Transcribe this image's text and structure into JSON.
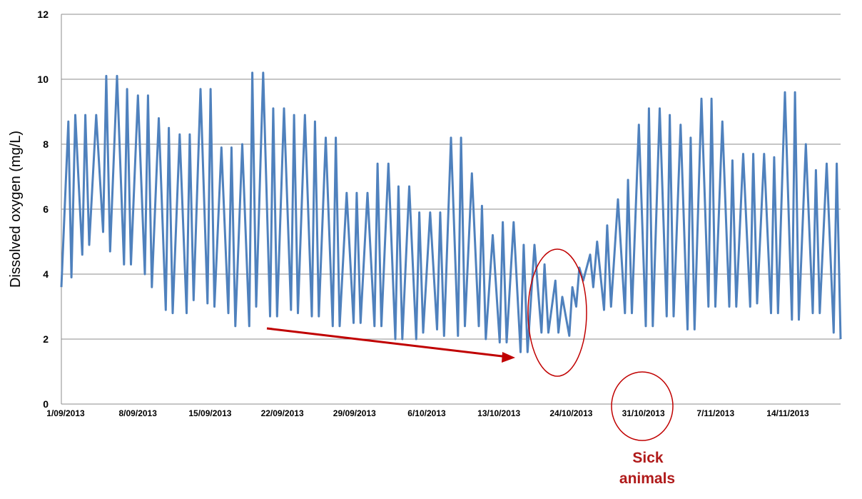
{
  "chart_data": {
    "type": "line",
    "title": "",
    "xlabel": "",
    "ylabel": "Dissolved oxygen  (mg/L)",
    "ylim": [
      0,
      12
    ],
    "yticks": [
      0,
      2,
      4,
      6,
      8,
      10,
      12
    ],
    "grid": "horizontal",
    "legend": "none",
    "x_tick_labels": [
      "1/09/2013",
      "8/09/2013",
      "15/09/2013",
      "22/09/2013",
      "29/09/2013",
      "6/10/2013",
      "13/10/2013",
      "24/10/2013",
      "31/10/2013",
      "7/11/2013",
      "14/11/2013"
    ],
    "series": [
      {
        "color": "#4f81bd",
        "points": [
          [
            "2013-09-01",
            3.6
          ],
          [
            "2013-09-02",
            8.7
          ],
          [
            "2013-09-02",
            3.9
          ],
          [
            "2013-09-03",
            8.9
          ],
          [
            "2013-09-04",
            4.6
          ],
          [
            "2013-09-04",
            8.9
          ],
          [
            "2013-09-05",
            4.9
          ],
          [
            "2013-09-06",
            8.9
          ],
          [
            "2013-09-07",
            5.3
          ],
          [
            "2013-09-07",
            10.1
          ],
          [
            "2013-09-08",
            4.7
          ],
          [
            "2013-09-09",
            10.1
          ],
          [
            "2013-09-10",
            4.3
          ],
          [
            "2013-09-10",
            9.7
          ],
          [
            "2013-09-11",
            4.3
          ],
          [
            "2013-09-12",
            9.5
          ],
          [
            "2013-09-13",
            4.0
          ],
          [
            "2013-09-13",
            9.5
          ],
          [
            "2013-09-14",
            3.6
          ],
          [
            "2013-09-15",
            8.8
          ],
          [
            "2013-09-16",
            2.9
          ],
          [
            "2013-09-16",
            8.5
          ],
          [
            "2013-09-17",
            2.8
          ],
          [
            "2013-09-18",
            8.3
          ],
          [
            "2013-09-19",
            2.8
          ],
          [
            "2013-09-19",
            8.3
          ],
          [
            "2013-09-20",
            3.2
          ],
          [
            "2013-09-21",
            9.7
          ],
          [
            "2013-09-22",
            3.1
          ],
          [
            "2013-09-22",
            9.7
          ],
          [
            "2013-09-23",
            3.0
          ],
          [
            "2013-09-24",
            7.9
          ],
          [
            "2013-09-25",
            2.8
          ],
          [
            "2013-09-25",
            7.9
          ],
          [
            "2013-09-26",
            2.4
          ],
          [
            "2013-09-27",
            8.0
          ],
          [
            "2013-09-28",
            2.4
          ],
          [
            "2013-09-28",
            10.2
          ],
          [
            "2013-09-29",
            3.0
          ],
          [
            "2013-09-30",
            10.2
          ],
          [
            "2013-10-01",
            2.7
          ],
          [
            "2013-10-01",
            9.1
          ],
          [
            "2013-10-02",
            2.7
          ],
          [
            "2013-10-03",
            9.1
          ],
          [
            "2013-10-04",
            2.9
          ],
          [
            "2013-10-04",
            8.9
          ],
          [
            "2013-10-05",
            2.8
          ],
          [
            "2013-10-06",
            8.9
          ],
          [
            "2013-10-07",
            2.7
          ],
          [
            "2013-10-07",
            8.7
          ],
          [
            "2013-10-08",
            2.7
          ],
          [
            "2013-10-09",
            8.2
          ],
          [
            "2013-10-10",
            2.4
          ],
          [
            "2013-10-10",
            8.2
          ],
          [
            "2013-10-11",
            2.4
          ],
          [
            "2013-10-12",
            6.5
          ],
          [
            "2013-10-13",
            2.5
          ],
          [
            "2013-10-13",
            6.5
          ],
          [
            "2013-10-14",
            2.5
          ],
          [
            "2013-10-15",
            6.5
          ],
          [
            "2013-10-16",
            2.4
          ],
          [
            "2013-10-16",
            7.4
          ],
          [
            "2013-10-17",
            2.4
          ],
          [
            "2013-10-18",
            7.4
          ],
          [
            "2013-10-19",
            2.0
          ],
          [
            "2013-10-19",
            6.7
          ],
          [
            "2013-10-20",
            2.0
          ],
          [
            "2013-10-21",
            6.7
          ],
          [
            "2013-10-22",
            2.0
          ],
          [
            "2013-10-22",
            5.9
          ],
          [
            "2013-10-23",
            2.2
          ],
          [
            "2013-10-24",
            5.9
          ],
          [
            "2013-10-25",
            2.3
          ],
          [
            "2013-10-25",
            5.9
          ],
          [
            "2013-10-26",
            2.1
          ],
          [
            "2013-10-27",
            8.2
          ],
          [
            "2013-10-28",
            2.1
          ],
          [
            "2013-10-28",
            8.2
          ],
          [
            "2013-10-29",
            2.4
          ],
          [
            "2013-10-30",
            7.1
          ],
          [
            "2013-10-31",
            2.4
          ],
          [
            "2013-10-31",
            6.1
          ],
          [
            "2013-11-01",
            2.0
          ],
          [
            "2013-11-02",
            5.2
          ],
          [
            "2013-11-03",
            1.9
          ],
          [
            "2013-11-03",
            5.6
          ],
          [
            "2013-11-04",
            1.9
          ],
          [
            "2013-11-05",
            5.6
          ],
          [
            "2013-11-06",
            1.6
          ],
          [
            "2013-11-06",
            4.9
          ],
          [
            "2013-11-07",
            1.6
          ],
          [
            "2013-11-08",
            4.9
          ],
          [
            "2013-11-09",
            2.2
          ],
          [
            "2013-11-09",
            4.3
          ],
          [
            "2013-11-10",
            2.2
          ],
          [
            "2013-11-11",
            3.8
          ],
          [
            "2013-11-11",
            2.2
          ],
          [
            "2013-11-12",
            3.3
          ],
          [
            "2013-11-13",
            2.1
          ],
          [
            "2013-11-13",
            3.6
          ],
          [
            "2013-11-14",
            3.0
          ],
          [
            "2013-11-14",
            4.2
          ],
          [
            "2013-11-15",
            3.8
          ],
          [
            "2013-11-16",
            4.6
          ],
          [
            "2013-11-16",
            3.6
          ],
          [
            "2013-11-17",
            5.0
          ],
          [
            "2013-11-18",
            2.9
          ],
          [
            "2013-11-18",
            5.5
          ],
          [
            "2013-11-19",
            3.0
          ],
          [
            "2013-11-20",
            6.3
          ],
          [
            "2013-11-21",
            2.8
          ],
          [
            "2013-11-21",
            6.9
          ],
          [
            "2013-11-22",
            2.8
          ],
          [
            "2013-11-23",
            8.6
          ],
          [
            "2013-11-24",
            2.4
          ],
          [
            "2013-11-24",
            9.1
          ],
          [
            "2013-11-25",
            2.4
          ],
          [
            "2013-11-26",
            9.1
          ],
          [
            "2013-11-27",
            2.7
          ],
          [
            "2013-11-27",
            8.9
          ],
          [
            "2013-11-28",
            2.7
          ],
          [
            "2013-11-29",
            8.6
          ],
          [
            "2013-11-30",
            2.3
          ],
          [
            "2013-11-30",
            8.2
          ],
          [
            "2013-12-01",
            2.3
          ],
          [
            "2013-12-02",
            9.4
          ],
          [
            "2013-12-03",
            3.0
          ],
          [
            "2013-12-03",
            9.4
          ],
          [
            "2013-12-04",
            3.0
          ],
          [
            "2013-12-05",
            8.7
          ],
          [
            "2013-12-06",
            3.0
          ],
          [
            "2013-12-06",
            7.5
          ],
          [
            "2013-12-07",
            3.0
          ],
          [
            "2013-12-08",
            7.7
          ],
          [
            "2013-12-09",
            3.0
          ],
          [
            "2013-12-09",
            7.7
          ],
          [
            "2013-12-10",
            3.1
          ],
          [
            "2013-12-11",
            7.7
          ],
          [
            "2013-12-12",
            2.8
          ],
          [
            "2013-12-12",
            7.6
          ],
          [
            "2013-12-13",
            2.8
          ],
          [
            "2013-12-14",
            9.6
          ],
          [
            "2013-12-15",
            2.6
          ],
          [
            "2013-12-15",
            9.6
          ],
          [
            "2013-12-16",
            2.6
          ],
          [
            "2013-12-17",
            8.0
          ],
          [
            "2013-12-18",
            2.8
          ],
          [
            "2013-12-18",
            7.2
          ],
          [
            "2013-12-19",
            2.8
          ],
          [
            "2013-12-20",
            7.4
          ],
          [
            "2013-12-21",
            2.2
          ],
          [
            "2013-12-21",
            7.4
          ],
          [
            "2013-12-22",
            2.0
          ]
        ]
      }
    ],
    "annotations": {
      "sick_label_line1": "Sick",
      "sick_label_line2": "animals",
      "arrow_color": "#c00000",
      "circle_color": "#c00000",
      "text_color": "#b01a1a"
    }
  }
}
